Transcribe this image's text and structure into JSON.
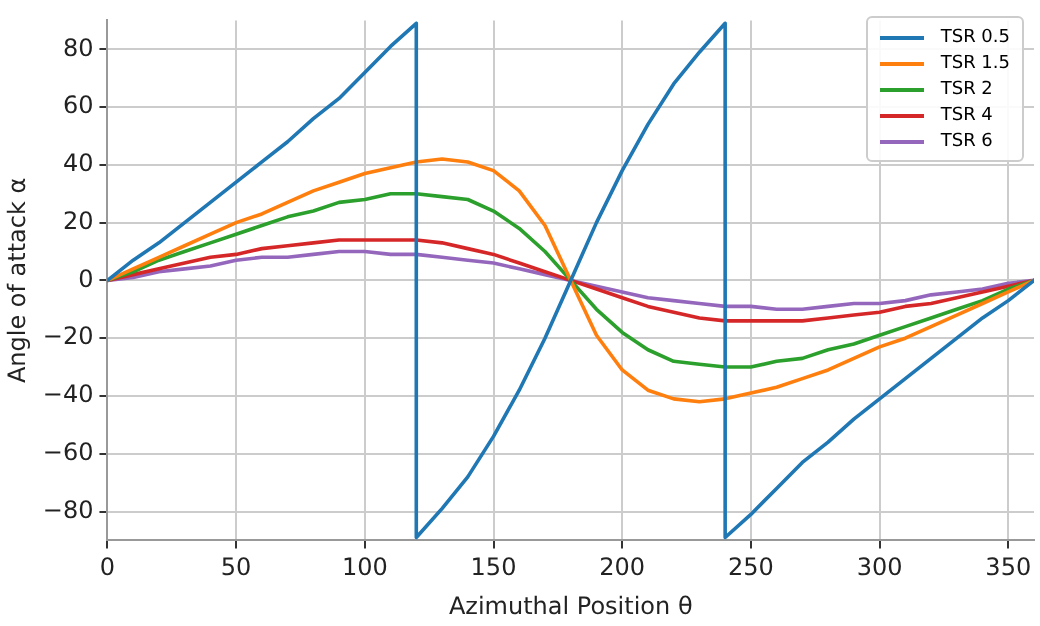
{
  "chart_data": {
    "type": "line",
    "xlabel": "Azimuthal Position θ",
    "ylabel": "Angle of attack α",
    "x": [
      0,
      10,
      20,
      30,
      40,
      50,
      60,
      70,
      80,
      90,
      100,
      110,
      120,
      130,
      140,
      150,
      160,
      170,
      180,
      190,
      200,
      210,
      220,
      230,
      240,
      250,
      260,
      270,
      280,
      290,
      300,
      310,
      320,
      330,
      340,
      350,
      360
    ],
    "series": [
      {
        "name": "TSR 0.5",
        "color": "#1f77b4",
        "x": [
          0,
          10,
          20,
          30,
          40,
          50,
          60,
          70,
          80,
          90,
          100,
          110,
          120,
          120,
          130,
          140,
          150,
          160,
          170,
          180,
          190,
          200,
          210,
          220,
          230,
          240,
          240,
          250,
          260,
          270,
          280,
          290,
          300,
          310,
          320,
          330,
          340,
          350,
          360
        ],
        "values": [
          0,
          7,
          13,
          20,
          27,
          34,
          41,
          48,
          56,
          63,
          72,
          81,
          89,
          -89,
          -79,
          -68,
          -54,
          -38,
          -20,
          0,
          20,
          38,
          54,
          68,
          79,
          89,
          -89,
          -81,
          -72,
          -63,
          -56,
          -48,
          -41,
          -34,
          -27,
          -20,
          -13,
          -7,
          0
        ]
      },
      {
        "name": "TSR 1.5",
        "color": "#ff7f0e",
        "values": [
          0,
          4,
          8,
          12,
          16,
          20,
          23,
          27,
          31,
          34,
          37,
          39,
          41,
          42,
          41,
          38,
          31,
          19,
          0,
          -19,
          -31,
          -38,
          -41,
          -42,
          -41,
          -39,
          -37,
          -34,
          -31,
          -27,
          -23,
          -20,
          -16,
          -12,
          -8,
          -4,
          0
        ]
      },
      {
        "name": "TSR 2",
        "color": "#2ca02c",
        "values": [
          0,
          3,
          7,
          10,
          13,
          16,
          19,
          22,
          24,
          27,
          28,
          30,
          30,
          29,
          28,
          24,
          18,
          10,
          0,
          -10,
          -18,
          -24,
          -28,
          -29,
          -30,
          -30,
          -28,
          -27,
          -24,
          -22,
          -19,
          -16,
          -13,
          -10,
          -7,
          -3,
          0
        ]
      },
      {
        "name": "TSR 4",
        "color": "#d62728",
        "values": [
          0,
          2,
          4,
          6,
          8,
          9,
          11,
          12,
          13,
          14,
          14,
          14,
          14,
          13,
          11,
          9,
          6,
          3,
          0,
          -3,
          -6,
          -9,
          -11,
          -13,
          -14,
          -14,
          -14,
          -14,
          -13,
          -12,
          -11,
          -9,
          -8,
          -6,
          -4,
          -2,
          0
        ]
      },
      {
        "name": "TSR 6",
        "color": "#9467bd",
        "values": [
          0,
          1,
          3,
          4,
          5,
          7,
          8,
          8,
          9,
          10,
          10,
          9,
          9,
          8,
          7,
          6,
          4,
          2,
          0,
          -2,
          -4,
          -6,
          -7,
          -8,
          -9,
          -9,
          -10,
          -10,
          -9,
          -8,
          -8,
          -7,
          -5,
          -4,
          -3,
          -1,
          0
        ]
      }
    ],
    "xlim": [
      0,
      360
    ],
    "xticks": [
      0,
      50,
      100,
      150,
      200,
      250,
      300,
      350
    ],
    "ylim": [
      -90,
      90
    ],
    "yticks": [
      -80,
      -60,
      -40,
      -20,
      0,
      20,
      40,
      60,
      80
    ],
    "grid": true,
    "legend": "top right",
    "marker": "none",
    "line_style": "solid"
  }
}
